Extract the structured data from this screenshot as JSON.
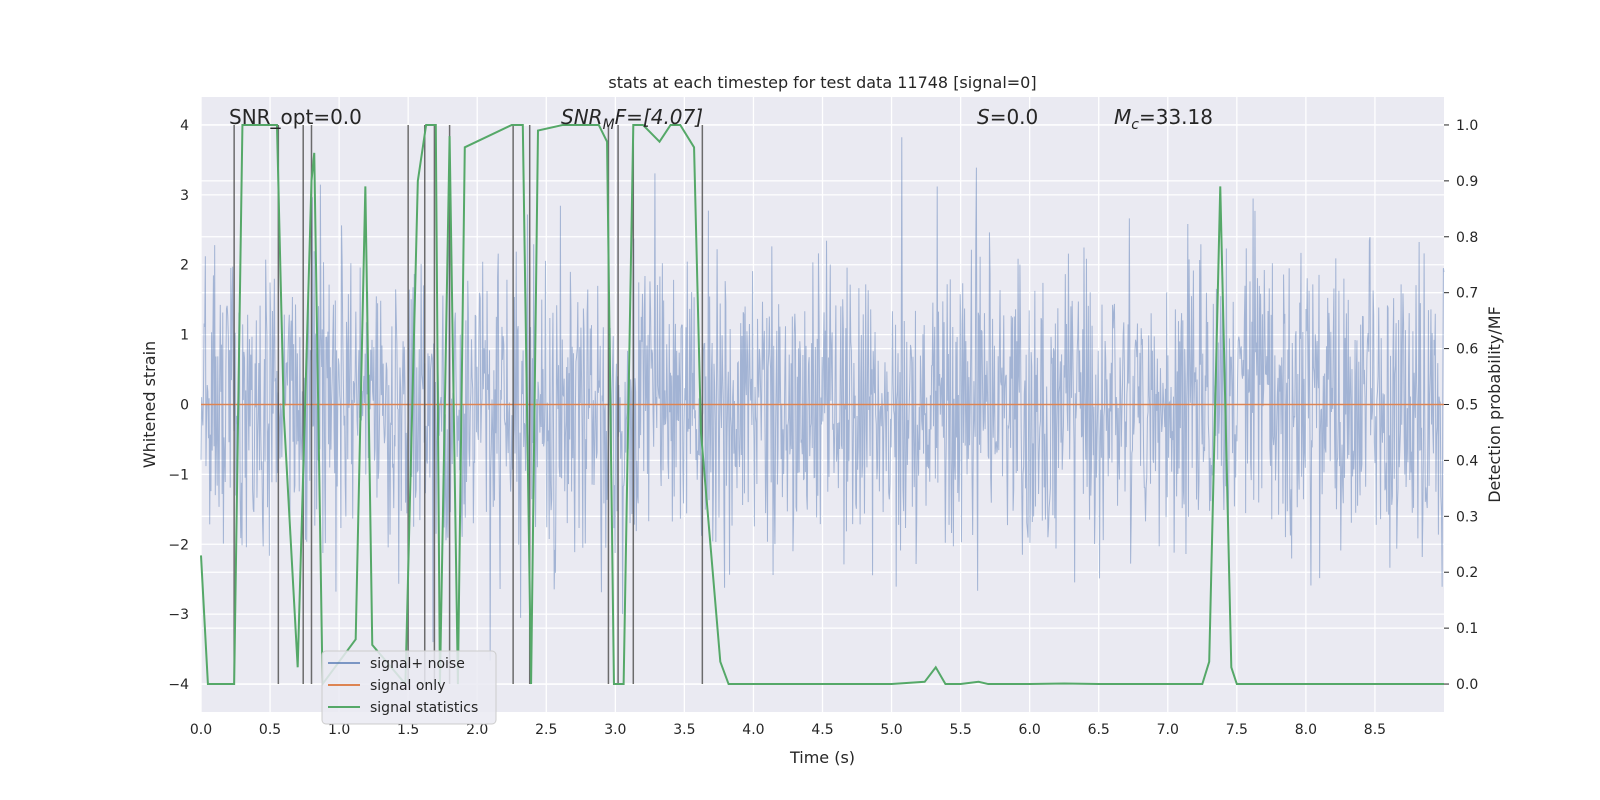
{
  "chart_data": {
    "type": "line",
    "title": "stats at each timestep for test data 11748 [signal=0]",
    "xlabel": "Time (s)",
    "ylabel": "Whitened strain",
    "ylabel_right": "Detection probability/MF",
    "xlim": [
      0.0,
      9.0
    ],
    "ylim": [
      -4.4,
      4.4
    ],
    "ylim_right": [
      -0.05,
      1.05
    ],
    "xticks": [
      0.0,
      0.5,
      1.0,
      1.5,
      2.0,
      2.5,
      3.0,
      3.5,
      4.0,
      4.5,
      5.0,
      5.5,
      6.0,
      6.5,
      7.0,
      7.5,
      8.0,
      8.5
    ],
    "xtick_labels": [
      "0.0",
      "0.5",
      "1.0",
      "1.5",
      "2.0",
      "2.5",
      "3.0",
      "3.5",
      "4.0",
      "4.5",
      "5.0",
      "5.5",
      "6.0",
      "6.5",
      "7.0",
      "7.5",
      "8.0",
      "8.5"
    ],
    "yticks": [
      -4,
      -3,
      -2,
      -1,
      0,
      1,
      2,
      3,
      4
    ],
    "ytick_labels": [
      "−4",
      "−3",
      "−2",
      "−1",
      "0",
      "1",
      "2",
      "3",
      "4"
    ],
    "yticks_right": [
      0.0,
      0.1,
      0.2,
      0.3,
      0.4,
      0.5,
      0.6,
      0.7,
      0.8,
      0.9,
      1.0
    ],
    "ytick_labels_right": [
      "0.0",
      "0.1",
      "0.2",
      "0.3",
      "0.4",
      "0.5",
      "0.6",
      "0.7",
      "0.8",
      "0.9",
      "1.0"
    ],
    "annotations": [
      "SNR_opt=0.0",
      "SNR",
      "M",
      "F=[4.07]",
      "S",
      "=0.0",
      "M",
      "c",
      "=33.18"
    ],
    "legend": [
      "signal+ noise",
      "signal only",
      "signal statistics"
    ],
    "series": [
      {
        "name": "signal+ noise",
        "axis": "left",
        "style": "white gaussian noise, amplitude about ±2.5, peaks up to ±4",
        "duration": 9.0,
        "samples": 2000
      },
      {
        "name": "signal only",
        "axis": "left",
        "x": [
          0.0,
          9.0
        ],
        "y": [
          0.0,
          0.0
        ]
      },
      {
        "name": "signal statistics",
        "axis": "right",
        "x": [
          0.0,
          0.05,
          0.24,
          0.3,
          0.55,
          0.6,
          0.7,
          0.8,
          0.82,
          0.88,
          1.12,
          1.19,
          1.24,
          1.48,
          1.57,
          1.63,
          1.7,
          1.73,
          1.8,
          1.86,
          1.91,
          2.25,
          2.33,
          2.39,
          2.44,
          2.62,
          2.88,
          2.94,
          2.99,
          3.06,
          3.13,
          3.2,
          3.32,
          3.4,
          3.47,
          3.57,
          3.62,
          3.76,
          3.82,
          4.0,
          5.0,
          5.24,
          5.32,
          5.39,
          5.5,
          5.63,
          5.7,
          6.0,
          6.25,
          6.5,
          7.0,
          7.25,
          7.3,
          7.38,
          7.46,
          7.5,
          8.0,
          8.5,
          9.0
        ],
        "y": [
          0.23,
          0.0,
          0.0,
          1.0,
          1.0,
          0.48,
          0.03,
          0.9,
          0.95,
          0.0,
          0.08,
          0.89,
          0.07,
          0.0,
          0.9,
          1.0,
          1.0,
          0.0,
          0.98,
          0.0,
          0.96,
          1.0,
          1.0,
          0.0,
          0.99,
          1.0,
          1.0,
          0.97,
          0.0,
          0.0,
          1.0,
          1.0,
          0.97,
          1.0,
          1.0,
          0.96,
          0.45,
          0.04,
          0.0,
          0.0,
          0.0,
          0.004,
          0.03,
          0.0,
          0.0,
          0.004,
          0.0,
          0.0,
          0.001,
          0.0,
          0.0,
          0.0,
          0.04,
          0.89,
          0.03,
          0.0,
          0.0,
          0.0,
          0.0
        ]
      }
    ],
    "event_markers": {
      "x": [
        0.24,
        0.56,
        0.74,
        0.8,
        1.5,
        1.62,
        1.69,
        1.8,
        2.26,
        2.38,
        2.95,
        3.02,
        3.13,
        3.63
      ],
      "y_top": [
        4.0,
        4.0,
        4.0,
        4.0,
        4.0,
        4.0,
        4.0,
        4.0,
        4.0,
        4.0,
        4.0,
        4.0,
        4.0,
        4.0
      ],
      "y_bottom": [
        -4.0,
        -4.0,
        -4.0,
        -4.0,
        -4.0,
        -4.0,
        -4.0,
        -4.0,
        -4.0,
        -4.0,
        -4.0,
        -4.0,
        -4.0,
        -4.0
      ]
    },
    "colors": {
      "background": "#eaeaf2",
      "grid": "#ffffff",
      "noise": "#4c72b0",
      "signal": "#dd8452",
      "stats": "#55a868",
      "marker": "#555555"
    }
  }
}
